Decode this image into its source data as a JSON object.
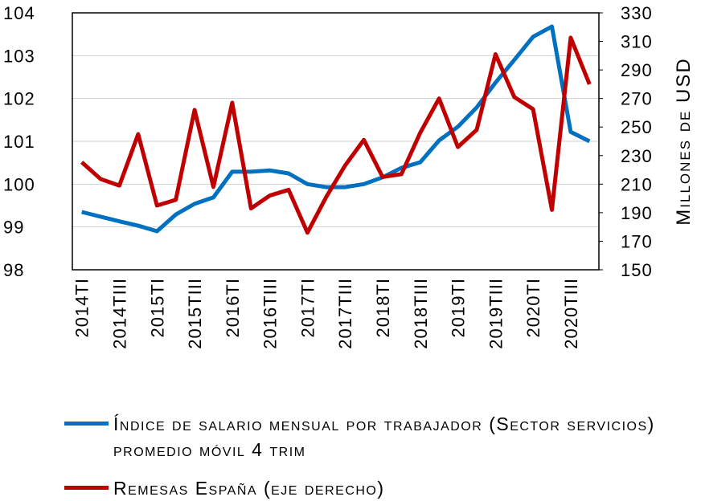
{
  "chart_data": {
    "type": "line",
    "y2label": "Millones de USD",
    "categories": [
      "2014TI",
      null,
      "2014TIII",
      null,
      "2015TI",
      null,
      "2015TIII",
      null,
      "2016TI",
      null,
      "2016TIII",
      null,
      "2017TI",
      null,
      "2017TIII",
      null,
      "2018TI",
      null,
      "2018TIII",
      null,
      "2019TI",
      null,
      "2019TIII",
      null,
      "2020TI",
      null,
      "2020TIII",
      null
    ],
    "series": [
      {
        "name": "Índice de salario mensual por trabajador (Sector servicios) promedio móvil 4 trim",
        "color": "#0070c0",
        "values": [
          99.35,
          99.24,
          99.13,
          99.03,
          98.9,
          99.29,
          99.54,
          99.69,
          100.29,
          100.29,
          100.32,
          100.25,
          100.0,
          99.93,
          99.93,
          100.0,
          100.16,
          100.38,
          100.51,
          101.02,
          101.34,
          101.79,
          102.37,
          102.9,
          103.44,
          103.68,
          101.22,
          101.0
        ]
      },
      {
        "name": "Remesas España (eje derecho)",
        "color": "#c00000",
        "axis": "y2",
        "values": [
          225.4,
          213.6,
          209,
          245,
          195,
          199,
          262,
          208,
          267,
          193,
          202,
          206,
          176,
          201,
          223,
          241,
          215,
          217,
          246,
          270,
          236,
          248,
          301,
          271,
          262.5,
          192,
          312.6,
          280
        ]
      }
    ],
    "ylim": [
      98,
      104
    ],
    "yticks": [
      98,
      99,
      100,
      101,
      102,
      103,
      104
    ],
    "y2lim": [
      150,
      330
    ],
    "y2ticks": [
      150,
      170,
      190,
      210,
      230,
      250,
      270,
      290,
      310,
      330
    ],
    "grid": true
  }
}
